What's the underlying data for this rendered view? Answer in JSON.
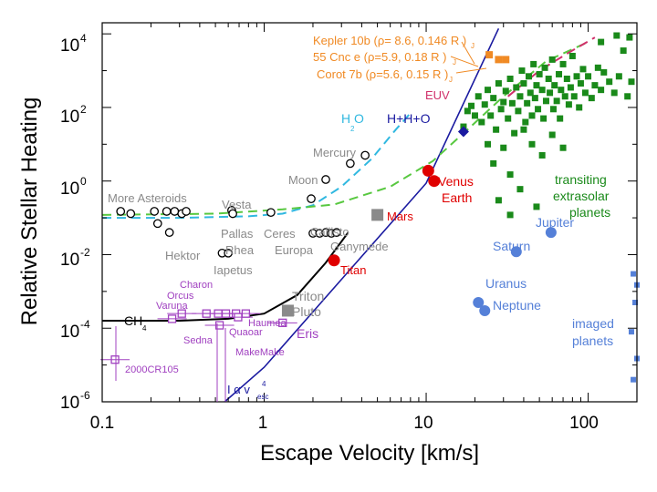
{
  "chart_data": {
    "type": "scatter",
    "title": "",
    "xlabel": "Escape Velocity [km/s]",
    "ylabel": "Relative Stellar Heating",
    "xscale": "log",
    "yscale": "log",
    "xlim": [
      0.1,
      200
    ],
    "ylim": [
      1e-06,
      20000
    ],
    "x_ticks": [
      "0.1",
      "1",
      "10",
      "100"
    ],
    "y_ticks": [
      {
        "value": 1e-06,
        "base": "10",
        "exp": "-6"
      },
      {
        "value": 0.0001,
        "base": "10",
        "exp": "-4"
      },
      {
        "value": 0.01,
        "base": "10",
        "exp": "-2"
      },
      {
        "value": 1,
        "base": "10",
        "exp": "0"
      },
      {
        "value": 100,
        "base": "10",
        "exp": "2"
      },
      {
        "value": 10000,
        "base": "10",
        "exp": "4"
      }
    ],
    "colors": {
      "black": "#000000",
      "gray": "#8a8a8a",
      "red": "#e00000",
      "orange": "#f08a24",
      "green": "#1a8a1a",
      "blue": "#5580d8",
      "purple": "#a040c0",
      "navy": "#1a1aa0",
      "cyan": "#30b8e0",
      "lime": "#58c840",
      "magenta": "#d0306a"
    },
    "series": [
      {
        "name": "asteroids",
        "marker": "open-circle",
        "color": "black",
        "points": [
          [
            0.13,
            0.15
          ],
          [
            0.15,
            0.13
          ],
          [
            0.21,
            0.15
          ],
          [
            0.22,
            0.07
          ],
          [
            0.25,
            0.15
          ],
          [
            0.28,
            0.15
          ],
          [
            0.31,
            0.13
          ],
          [
            0.26,
            0.04
          ],
          [
            0.33,
            0.15
          ],
          [
            0.63,
            0.16
          ],
          [
            0.64,
            0.13
          ],
          [
            0.55,
            0.011
          ],
          [
            0.6,
            0.011
          ],
          [
            1.1,
            0.14
          ],
          [
            1.95,
            0.33
          ],
          [
            2.0,
            0.038
          ],
          [
            2.2,
            0.038
          ],
          [
            2.4,
            0.04
          ],
          [
            2.6,
            0.038
          ],
          [
            2.8,
            0.04
          ],
          [
            2.4,
            1.1
          ],
          [
            4.2,
            5.0
          ],
          [
            3.4,
            3.0
          ]
        ]
      },
      {
        "name": "solar-system-gray",
        "marker": "filled-square",
        "color": "gray",
        "points": [
          [
            5.0,
            0.12
          ],
          [
            1.4,
            0.0003
          ]
        ]
      },
      {
        "name": "solar-system-red",
        "marker": "filled-circle",
        "color": "red",
        "points": [
          [
            10.3,
            1.9
          ],
          [
            11.2,
            1.0
          ],
          [
            2.7,
            0.007
          ]
        ]
      },
      {
        "name": "icy-giants",
        "marker": "filled-circle",
        "color": "blue",
        "points": [
          [
            21,
            0.0005
          ],
          [
            23,
            0.0003
          ],
          [
            36,
            0.012
          ],
          [
            59,
            0.04
          ]
        ]
      },
      {
        "name": "kepler-55cnc-corot",
        "marker": "filled-square",
        "color": "orange",
        "points": [
          [
            24.5,
            2700
          ],
          [
            28,
            2000
          ],
          [
            31,
            2000
          ]
        ]
      },
      {
        "name": "transiting-extrasolar-planets",
        "marker": "filled-square",
        "color": "green",
        "points": [
          [
            17,
            30
          ],
          [
            18,
            80
          ],
          [
            19,
            110
          ],
          [
            20,
            60
          ],
          [
            21,
            200
          ],
          [
            22,
            40
          ],
          [
            23,
            120
          ],
          [
            24,
            300
          ],
          [
            24,
            10
          ],
          [
            25,
            60
          ],
          [
            26,
            180
          ],
          [
            27,
            25
          ],
          [
            28,
            450
          ],
          [
            29,
            90
          ],
          [
            30,
            140
          ],
          [
            30,
            8
          ],
          [
            31,
            280
          ],
          [
            32,
            50
          ],
          [
            33,
            600
          ],
          [
            34,
            130
          ],
          [
            35,
            20
          ],
          [
            36,
            350
          ],
          [
            37,
            80
          ],
          [
            38,
            200
          ],
          [
            39,
            1000
          ],
          [
            40,
            450
          ],
          [
            41,
            40
          ],
          [
            42,
            130
          ],
          [
            43,
            700
          ],
          [
            44,
            250
          ],
          [
            45,
            60
          ],
          [
            46,
            1500
          ],
          [
            47,
            180
          ],
          [
            48,
            400
          ],
          [
            49,
            90
          ],
          [
            50,
            800
          ],
          [
            52,
            300
          ],
          [
            53,
            50
          ],
          [
            54,
            1200
          ],
          [
            55,
            150
          ],
          [
            57,
            600
          ],
          [
            58,
            250
          ],
          [
            60,
            2000
          ],
          [
            61,
            90
          ],
          [
            62,
            400
          ],
          [
            64,
            150
          ],
          [
            66,
            800
          ],
          [
            67,
            50
          ],
          [
            68,
            300
          ],
          [
            70,
            1500
          ],
          [
            72,
            200
          ],
          [
            74,
            600
          ],
          [
            76,
            120
          ],
          [
            78,
            350
          ],
          [
            80,
            2500
          ],
          [
            82,
            200
          ],
          [
            85,
            700
          ],
          [
            88,
            100
          ],
          [
            90,
            450
          ],
          [
            93,
            1100
          ],
          [
            96,
            250
          ],
          [
            100,
            700
          ],
          [
            105,
            180
          ],
          [
            110,
            400
          ],
          [
            115,
            1200
          ],
          [
            120,
            300
          ],
          [
            125,
            900
          ],
          [
            135,
            500
          ],
          [
            145,
            250
          ],
          [
            155,
            700
          ],
          [
            165,
            3500
          ],
          [
            175,
            200
          ],
          [
            185,
            500
          ],
          [
            40,
            25
          ],
          [
            45,
            10
          ],
          [
            52,
            5
          ],
          [
            60,
            18
          ],
          [
            70,
            8
          ],
          [
            26,
            3
          ],
          [
            33,
            1.5
          ],
          [
            38,
            0.6
          ],
          [
            48,
            0.2
          ],
          [
            28,
            0.3
          ],
          [
            33,
            0.12
          ],
          [
            120,
            6000
          ],
          [
            150,
            9000
          ],
          [
            180,
            8000
          ]
        ]
      },
      {
        "name": "reference-blue-diamond",
        "marker": "filled-diamond",
        "color": "navy",
        "points": [
          [
            17,
            22
          ]
        ]
      },
      {
        "name": "imaged-planets",
        "marker": "filled-square",
        "color": "blue",
        "points": [
          [
            190,
            0.003
          ],
          [
            200,
            0.0015
          ],
          [
            195,
            0.0005
          ],
          [
            185,
            8e-05
          ],
          [
            200,
            1.5e-05
          ],
          [
            190,
            4e-06
          ]
        ]
      },
      {
        "name": "dwarf-planets",
        "marker": "square",
        "color": "purple",
        "points": [
          [
            0.27,
            0.00018
          ],
          [
            0.31,
            0.00025
          ],
          [
            0.44,
            0.00025
          ],
          [
            0.53,
            0.00012
          ],
          [
            0.52,
            0.00025
          ],
          [
            0.58,
            0.00025
          ],
          [
            0.67,
            0.00025
          ],
          [
            0.69,
            0.0002
          ],
          [
            0.77,
            0.00025
          ],
          [
            0.12,
            1.4e-05
          ],
          [
            1.3,
            0.00014
          ]
        ]
      },
      {
        "name": "detection-line",
        "marker": "line",
        "color": "navy",
        "points": [
          [
            0.57,
            1e-06
          ],
          [
            1.0,
            8.7e-06
          ],
          [
            10,
            0.87
          ],
          [
            28,
            14000
          ]
        ]
      },
      {
        "name": "CH4",
        "marker": "line",
        "color": "black",
        "points": [
          [
            0.1,
            0.00016
          ],
          [
            0.3,
            0.00016
          ],
          [
            0.6,
            0.00018
          ],
          [
            1.0,
            0.00025
          ],
          [
            1.6,
            0.0008
          ],
          [
            2.4,
            0.006
          ],
          [
            3.3,
            0.04
          ]
        ]
      },
      {
        "name": "H2O",
        "marker": "dashed",
        "color": "cyan",
        "points": [
          [
            0.1,
            0.1
          ],
          [
            0.3,
            0.1
          ],
          [
            0.8,
            0.11
          ],
          [
            1.3,
            0.13
          ],
          [
            2.0,
            0.22
          ],
          [
            3.0,
            0.7
          ],
          [
            4.6,
            4
          ],
          [
            6.5,
            25
          ],
          [
            8,
            70
          ]
        ]
      },
      {
        "name": "H+H+O",
        "marker": "dashed",
        "color": "lime",
        "points": [
          [
            0.1,
            0.12
          ],
          [
            0.5,
            0.13
          ],
          [
            1.3,
            0.17
          ],
          [
            2.7,
            0.23
          ],
          [
            6,
            0.7
          ],
          [
            11,
            3.5
          ],
          [
            18,
            25
          ],
          [
            30,
            200
          ],
          [
            55,
            1800
          ],
          [
            100,
            6000
          ]
        ]
      },
      {
        "name": "EUV",
        "marker": "dashed",
        "color": "magenta",
        "points": [
          [
            32,
            200
          ],
          [
            50,
            1000
          ],
          [
            75,
            3000
          ],
          [
            110,
            8000
          ]
        ]
      }
    ],
    "annotations": [
      {
        "text": "More Asteroids",
        "color": "gray"
      },
      {
        "text": "Vesta",
        "color": "gray"
      },
      {
        "text": "Pallas",
        "color": "gray"
      },
      {
        "text": "Rhea",
        "color": "gray"
      },
      {
        "text": "Iapetus",
        "color": "gray"
      },
      {
        "text": "Hektor",
        "color": "gray"
      },
      {
        "text": "Ceres",
        "color": "gray"
      },
      {
        "text": "Europa",
        "color": "gray"
      },
      {
        "text": "Callisto",
        "color": "gray"
      },
      {
        "text": "Ganymede",
        "color": "gray"
      },
      {
        "text": "Moon",
        "color": "gray"
      },
      {
        "text": "Mercury",
        "color": "gray"
      },
      {
        "text": "Triton",
        "color": "gray"
      },
      {
        "text": "Pluto",
        "color": "gray"
      },
      {
        "text": "Mars",
        "color": "red"
      },
      {
        "text": "Venus",
        "color": "red"
      },
      {
        "text": "Earth",
        "color": "red"
      },
      {
        "text": "Titan",
        "color": "red"
      },
      {
        "text": "Jupiter",
        "color": "blue"
      },
      {
        "text": "Saturn",
        "color": "blue"
      },
      {
        "text": "Uranus",
        "color": "blue"
      },
      {
        "text": "Neptune",
        "color": "blue"
      },
      {
        "text": "imaged",
        "color": "blue"
      },
      {
        "text": "planets",
        "color": "blue"
      },
      {
        "text": "transiting",
        "color": "green"
      },
      {
        "text": "extrasolar",
        "color": "green"
      },
      {
        "text": "planets",
        "color": "green"
      },
      {
        "text": "Kepler 10b (ρ= 8.6, 0.146 R )",
        "color": "orange"
      },
      {
        "text": "55 Cnc e (ρ=5.9, 0.18 R )",
        "color": "orange"
      },
      {
        "text": "Corot 7b (ρ=5.6, 0.15 R )",
        "color": "orange"
      },
      {
        "text": "EUV",
        "color": "magenta"
      },
      {
        "text": "H O",
        "color": "cyan"
      },
      {
        "text": "H+H+O",
        "color": "navy"
      },
      {
        "text": "CH",
        "color": "black"
      },
      {
        "text": "Charon",
        "color": "purple"
      },
      {
        "text": "Orcus",
        "color": "purple"
      },
      {
        "text": "Varuna",
        "color": "purple"
      },
      {
        "text": "Quaoar",
        "color": "purple"
      },
      {
        "text": "Haumea",
        "color": "purple"
      },
      {
        "text": "Eris",
        "color": "purple"
      },
      {
        "text": "Sedna",
        "color": "purple"
      },
      {
        "text": "MakeMake",
        "color": "purple"
      },
      {
        "text": "2000CR105",
        "color": "purple"
      },
      {
        "text": "I α v",
        "color": "navy"
      }
    ],
    "subscripts": {
      "two": "2",
      "four": "4",
      "J": "J",
      "esc": "esc"
    }
  }
}
